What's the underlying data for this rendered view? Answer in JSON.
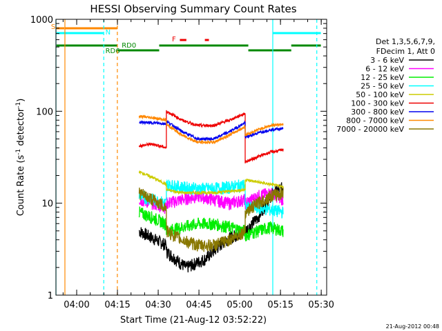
{
  "chart_data": {
    "type": "line",
    "title": "HESSI Observing Summary Count Rates",
    "xlabel": "Start Time (21-Aug-12 03:52:22)",
    "ylabel_main": "Count Rate (s",
    "ylabel_sup1": "-1",
    "ylabel_mid": " detector",
    "ylabel_sup2": "-1",
    "ylabel_end": ")",
    "y_scale": "log",
    "ylim": [
      1,
      1000
    ],
    "xlim": [
      "03:52:22",
      "05:32:00"
    ],
    "x_ticks": [
      "04:00",
      "04:15",
      "04:30",
      "04:45",
      "05:00",
      "05:15",
      "05:30"
    ],
    "y_ticks": [
      "1",
      "10",
      "100",
      "1000"
    ],
    "legend": {
      "title_line1": "Det 1,3,5,6,7,9,",
      "title_line2": "FDecim 1, Att 0",
      "placement": "right",
      "entries": [
        {
          "label": "3 - 6 keV",
          "color": "#000000"
        },
        {
          "label": "6 - 12 keV",
          "color": "#ff00ff"
        },
        {
          "label": "12 - 25 keV",
          "color": "#00ee00"
        },
        {
          "label": "25 - 50 keV",
          "color": "#00ffff"
        },
        {
          "label": "50 - 100 keV",
          "color": "#cccc00"
        },
        {
          "label": "100 - 300 keV",
          "color": "#ee0000"
        },
        {
          "label": "300 - 800 keV",
          "color": "#0000ee"
        },
        {
          "label": "800 - 7000 keV",
          "color": "#ff8800"
        },
        {
          "label": "7000 - 20000 keV",
          "color": "#887700"
        }
      ]
    },
    "flags": [
      {
        "label": "S",
        "color": "#ff8800"
      },
      {
        "label": "N",
        "color": "#00ffff"
      },
      {
        "label": "RD0",
        "color": "#008800"
      },
      {
        "label": "RD6",
        "color": "#008800"
      },
      {
        "label": "F",
        "color": "#ee0000"
      }
    ],
    "series_segments_times": [
      [
        "04:23",
        "04:33"
      ],
      [
        "04:33",
        "05:02"
      ],
      [
        "05:02",
        "05:16"
      ]
    ],
    "series": [
      {
        "name": "3 - 6 keV",
        "values": [
          [
            5,
            3.5
          ],
          [
            3,
            2,
            2.5,
            4,
            5
          ],
          [
            5,
            7,
            12,
            15
          ]
        ]
      },
      {
        "name": "6 - 12 keV",
        "values": [
          [
            11,
            10,
            9
          ],
          [
            10,
            11,
            12,
            11,
            10,
            11
          ],
          [
            10,
            12,
            13,
            11
          ]
        ]
      },
      {
        "name": "12 - 25 keV",
        "values": [
          [
            8,
            7,
            6
          ],
          [
            5,
            5.5,
            6,
            6,
            5.5,
            5
          ],
          [
            4.5,
            5,
            5.5,
            5
          ]
        ]
      },
      {
        "name": "25 - 50 keV",
        "values": [
          [
            12,
            11,
            10
          ],
          [
            16,
            15,
            14.5,
            14.5,
            15,
            16
          ],
          [
            9,
            9,
            8.5,
            8
          ]
        ]
      },
      {
        "name": "50 - 100 keV",
        "values": [
          [
            22,
            19,
            16
          ],
          [
            14,
            13,
            13,
            13,
            13.5,
            14
          ],
          [
            18,
            17,
            16,
            15
          ]
        ]
      },
      {
        "name": "100 - 300 keV",
        "values": [
          [
            42,
            44,
            40
          ],
          [
            100,
            80,
            70,
            70,
            80,
            95
          ],
          [
            28,
            32,
            36,
            38
          ]
        ]
      },
      {
        "name": "300 - 800 keV",
        "values": [
          [
            76,
            75,
            73
          ],
          [
            78,
            60,
            50,
            50,
            60,
            75
          ],
          [
            52,
            58,
            63,
            65
          ]
        ]
      },
      {
        "name": "800 - 7000 keV",
        "values": [
          [
            88,
            85,
            80
          ],
          [
            72,
            55,
            46,
            46,
            55,
            68
          ],
          [
            55,
            63,
            70,
            73
          ]
        ]
      },
      {
        "name": "7000 - 20000 keV",
        "values": [
          [
            13,
            11,
            9
          ],
          [
            5,
            4,
            3.5,
            3.5,
            4,
            5
          ],
          [
            8,
            10,
            12,
            13
          ]
        ]
      }
    ]
  },
  "footer": {
    "stamp": "21-Aug-2012 00:48"
  }
}
